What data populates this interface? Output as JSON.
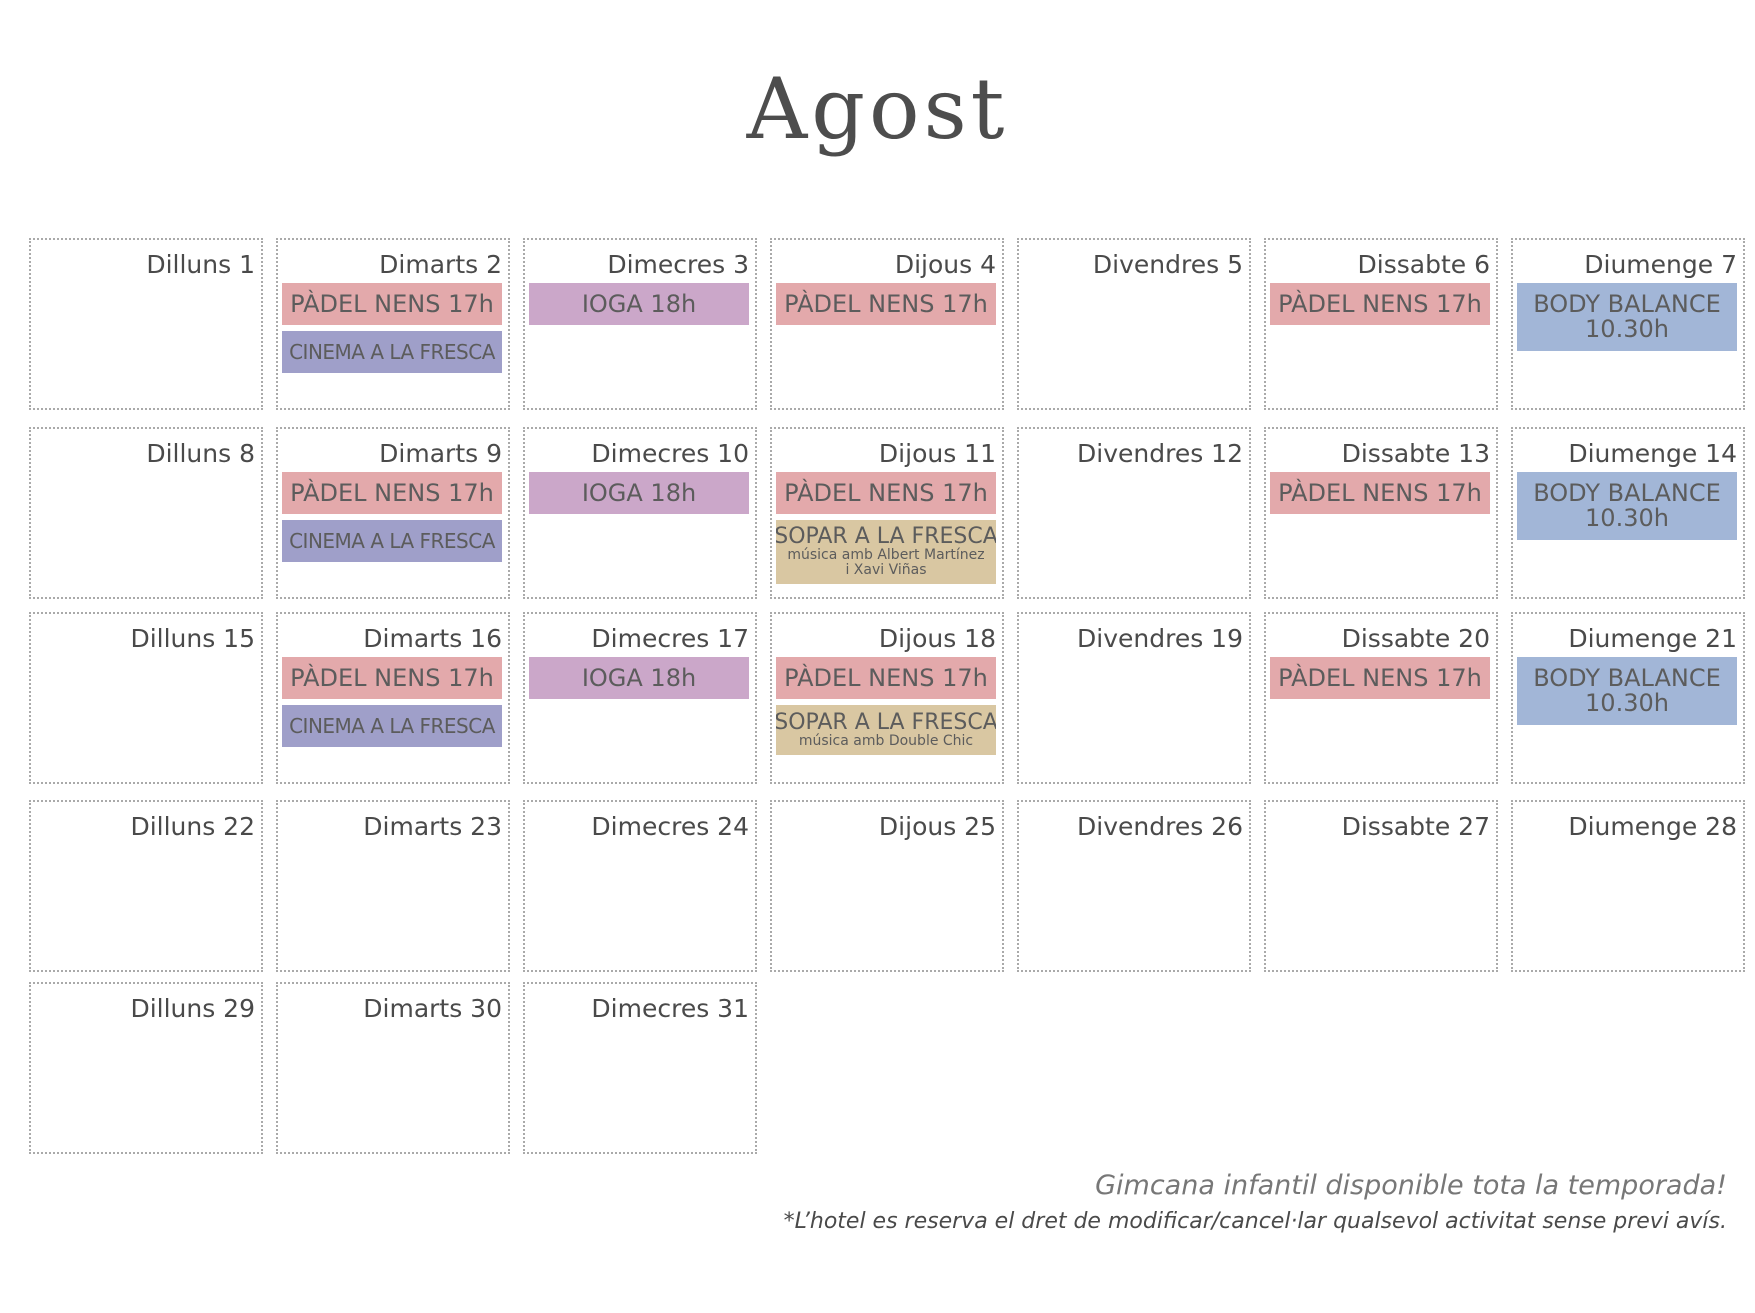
{
  "title": "Agost",
  "days": [
    {
      "label": "Dilluns 1",
      "events": []
    },
    {
      "label": "Dimarts 2",
      "events": [
        {
          "type": "padel",
          "label": "PÀDEL NENS 17h"
        },
        {
          "type": "cinema",
          "label": "CINEMA A LA FRESCA"
        }
      ]
    },
    {
      "label": "Dimecres 3",
      "events": [
        {
          "type": "ioga",
          "label": "IOGA 18h"
        }
      ]
    },
    {
      "label": "Dijous 4",
      "events": [
        {
          "type": "padel",
          "label": "PÀDEL NENS 17h"
        }
      ]
    },
    {
      "label": "Divendres 5",
      "events": []
    },
    {
      "label": "Dissabte 6",
      "events": [
        {
          "type": "padel",
          "label": "PÀDEL NENS 17h"
        }
      ]
    },
    {
      "label": "Diumenge 7",
      "events": [
        {
          "type": "body",
          "lines": [
            "BODY BALANCE",
            "10.30h"
          ]
        }
      ]
    },
    {
      "label": "Dilluns 8",
      "events": []
    },
    {
      "label": "Dimarts 9",
      "events": [
        {
          "type": "padel",
          "label": "PÀDEL NENS 17h"
        },
        {
          "type": "cinema",
          "label": "CINEMA A LA FRESCA"
        }
      ]
    },
    {
      "label": "Dimecres 10",
      "events": [
        {
          "type": "ioga",
          "label": "IOGA 18h"
        }
      ]
    },
    {
      "label": "Dijous 11",
      "events": [
        {
          "type": "padel",
          "label": "PÀDEL NENS 17h"
        },
        {
          "type": "sopar",
          "label": "SOPAR A LA FRESCA",
          "sub": [
            "música amb Albert Martínez",
            "i Xavi Viñas"
          ]
        }
      ]
    },
    {
      "label": "Divendres 12",
      "events": []
    },
    {
      "label": "Dissabte 13",
      "events": [
        {
          "type": "padel",
          "label": "PÀDEL NENS 17h"
        }
      ]
    },
    {
      "label": "Diumenge 14",
      "events": [
        {
          "type": "body",
          "lines": [
            "BODY BALANCE",
            "10.30h"
          ]
        }
      ]
    },
    {
      "label": "Dilluns 15",
      "events": []
    },
    {
      "label": "Dimarts 16",
      "events": [
        {
          "type": "padel",
          "label": "PÀDEL NENS 17h"
        },
        {
          "type": "cinema",
          "label": "CINEMA A LA FRESCA"
        }
      ]
    },
    {
      "label": "Dimecres 17",
      "events": [
        {
          "type": "ioga",
          "label": "IOGA 18h"
        }
      ]
    },
    {
      "label": "Dijous 18",
      "events": [
        {
          "type": "padel",
          "label": "PÀDEL NENS 17h"
        },
        {
          "type": "sopar",
          "label": "SOPAR A LA FRESCA",
          "sub": [
            "música amb Double Chic"
          ]
        }
      ]
    },
    {
      "label": "Divendres 19",
      "events": []
    },
    {
      "label": "Dissabte 20",
      "events": [
        {
          "type": "padel",
          "label": "PÀDEL NENS 17h"
        }
      ]
    },
    {
      "label": "Diumenge 21",
      "events": [
        {
          "type": "body",
          "lines": [
            "BODY BALANCE",
            "10.30h"
          ]
        }
      ]
    },
    {
      "label": "Dilluns 22",
      "events": []
    },
    {
      "label": "Dimarts 23",
      "events": []
    },
    {
      "label": "Dimecres 24",
      "events": []
    },
    {
      "label": "Dijous 25",
      "events": []
    },
    {
      "label": "Divendres 26",
      "events": []
    },
    {
      "label": "Dissabte 27",
      "events": []
    },
    {
      "label": "Diumenge 28",
      "events": []
    },
    {
      "label": "Dilluns 29",
      "events": []
    },
    {
      "label": "Dimarts 30",
      "events": []
    },
    {
      "label": "Dimecres 31",
      "events": []
    }
  ],
  "footer": {
    "note": "Gimcana infantil disponible tota la temporada!",
    "disclaimer": "*L’hotel es reserva el dret de modificar/cancel·lar qualsevol activitat sense previ avís."
  }
}
